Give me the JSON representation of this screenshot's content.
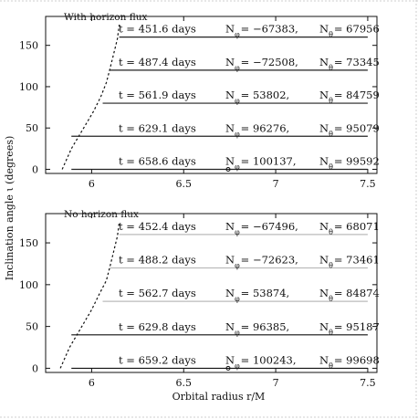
{
  "chart_data": [
    {
      "type": "line",
      "panel_label": "With horizon flux",
      "xlabel": "",
      "ylabel": "",
      "xlim": [
        5.75,
        7.55
      ],
      "ylim": [
        -5,
        185
      ],
      "xticks": [
        6,
        6.5,
        7,
        7.5
      ],
      "yticks": [
        0,
        50,
        100,
        150
      ],
      "xtick_labels": [
        "6",
        "6.5",
        "7",
        "7.5"
      ],
      "ytick_labels": [
        "0",
        "50",
        "100",
        "150"
      ],
      "series": [
        {
          "x": [
            5.84,
            5.86,
            5.89,
            5.93,
            5.97,
            6.01,
            6.05,
            6.08,
            6.1,
            6.12,
            6.14,
            6.15
          ],
          "y": [
            0,
            10,
            25,
            40,
            55,
            70,
            88,
            105,
            122,
            140,
            158,
            175
          ]
        }
      ],
      "annotations": [
        {
          "t_label": "t = 451.6 days",
          "n_phi_label": "N",
          "n_phi_sub": "φ",
          "n_phi_value": "= −67383,",
          "n_theta_label": "N",
          "n_theta_sub": "θ",
          "n_theta_value": "= 67956",
          "y": 160,
          "x_start": 6.15,
          "x_end": 7.5,
          "line_color": "#222222"
        },
        {
          "t_label": "t = 487.4 days",
          "n_phi_label": "N",
          "n_phi_sub": "φ",
          "n_phi_value": "= −72508,",
          "n_theta_label": "N",
          "n_theta_sub": "θ",
          "n_theta_value": "= 73345",
          "y": 120,
          "x_start": 6.1,
          "x_end": 7.5,
          "line_color": "#222222"
        },
        {
          "t_label": "t = 561.9 days",
          "n_phi_label": "N",
          "n_phi_sub": "φ",
          "n_phi_value": "= 53802,",
          "n_theta_label": "N",
          "n_theta_sub": "θ",
          "n_theta_value": "= 84759",
          "y": 80,
          "x_start": 6.06,
          "x_end": 7.5,
          "line_color": "#222222"
        },
        {
          "t_label": "t = 629.1 days",
          "n_phi_label": "N",
          "n_phi_sub": "φ",
          "n_phi_value": "= 96276,",
          "n_theta_label": "N",
          "n_theta_sub": "θ",
          "n_theta_value": "= 95079",
          "y": 40,
          "x_start": 5.89,
          "x_end": 7.5,
          "line_color": "#222222"
        },
        {
          "t_label": "t = 658.6 days",
          "n_phi_label": "N",
          "n_phi_sub": "φ",
          "n_phi_value": "= 100137,",
          "n_theta_label": "N",
          "n_theta_sub": "θ",
          "n_theta_value": "= 99592",
          "y": 0,
          "x_start": 5.89,
          "x_end": 7.5,
          "line_color": "#222222"
        }
      ]
    },
    {
      "type": "line",
      "panel_label": "No horizon flux",
      "xlabel": "Orbital radius r/M",
      "ylabel": "",
      "xlim": [
        5.75,
        7.55
      ],
      "ylim": [
        -5,
        185
      ],
      "xticks": [
        6,
        6.5,
        7,
        7.5
      ],
      "yticks": [
        0,
        50,
        100,
        150
      ],
      "xtick_labels": [
        "6",
        "6.5",
        "7",
        "7.5"
      ],
      "ytick_labels": [
        "0",
        "50",
        "100",
        "150"
      ],
      "series": [
        {
          "x": [
            5.83,
            5.85,
            5.88,
            5.92,
            5.96,
            6.0,
            6.04,
            6.08,
            6.1,
            6.12,
            6.14,
            6.15
          ],
          "y": [
            0,
            10,
            25,
            40,
            55,
            70,
            88,
            105,
            122,
            140,
            158,
            175
          ]
        }
      ],
      "annotations": [
        {
          "t_label": "t = 452.4 days",
          "n_phi_label": "N",
          "n_phi_sub": "φ",
          "n_phi_value": "= −67496,",
          "n_theta_label": "N",
          "n_theta_sub": "θ",
          "n_theta_value": "= 68071",
          "y": 160,
          "x_start": 6.15,
          "x_end": 7.5,
          "line_color": "#bbbbbb"
        },
        {
          "t_label": "t = 488.2 days",
          "n_phi_label": "N",
          "n_phi_sub": "φ",
          "n_phi_value": "= −72623,",
          "n_theta_label": "N",
          "n_theta_sub": "θ",
          "n_theta_value": "= 73461",
          "y": 120,
          "x_start": 6.1,
          "x_end": 7.5,
          "line_color": "#bbbbbb"
        },
        {
          "t_label": "t = 562.7 days",
          "n_phi_label": "N",
          "n_phi_sub": "φ",
          "n_phi_value": "= 53874,",
          "n_theta_label": "N",
          "n_theta_sub": "θ",
          "n_theta_value": "= 84874",
          "y": 80,
          "x_start": 6.06,
          "x_end": 7.5,
          "line_color": "#bbbbbb"
        },
        {
          "t_label": "t = 629.8 days",
          "n_phi_label": "N",
          "n_phi_sub": "φ",
          "n_phi_value": "= 96385,",
          "n_theta_label": "N",
          "n_theta_sub": "θ",
          "n_theta_value": "= 95187",
          "y": 40,
          "x_start": 5.89,
          "x_end": 7.5,
          "line_color": "#111111"
        },
        {
          "t_label": "t = 659.2 days",
          "n_phi_label": "N",
          "n_phi_sub": "φ",
          "n_phi_value": "= 100243,",
          "n_theta_label": "N",
          "n_theta_sub": "θ",
          "n_theta_value": "= 99698",
          "y": 0,
          "x_start": 5.89,
          "x_end": 7.5,
          "line_color": "#111111"
        }
      ]
    }
  ],
  "figure": {
    "ylabel_main": "Inclination angle ι  (degrees)",
    "background": "#ffffff",
    "foreground": "#111111"
  }
}
